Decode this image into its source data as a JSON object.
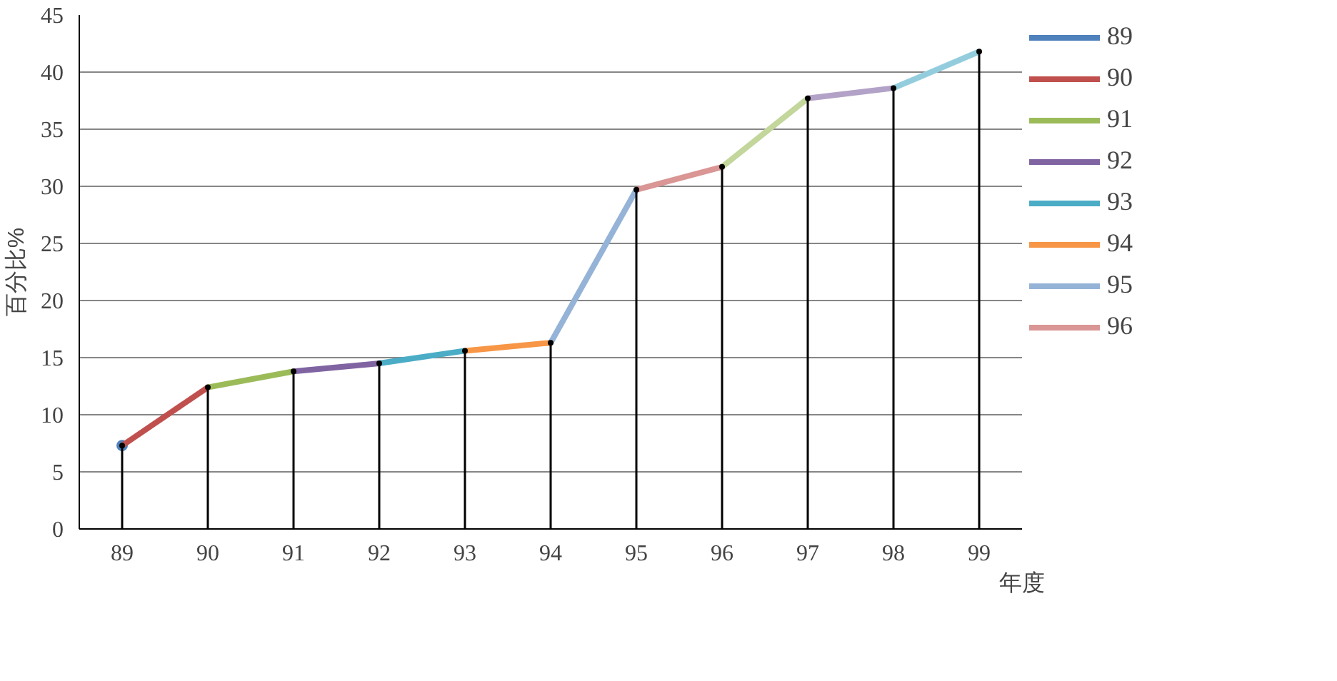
{
  "chart_data": {
    "type": "line",
    "categories": [
      "89",
      "90",
      "91",
      "92",
      "93",
      "94",
      "95",
      "96",
      "97",
      "98",
      "99"
    ],
    "ylabel": "百分比%",
    "xlabel": "年度",
    "ylim": [
      0,
      45
    ],
    "yticks": [
      0,
      5,
      10,
      15,
      20,
      25,
      30,
      35,
      40,
      45
    ],
    "grid": "y",
    "legend": "right",
    "line_style": "solid",
    "marker": "none",
    "series": [
      {
        "name": "89",
        "color": "#4f81bd",
        "marker": "circle",
        "values": [
          7.3,
          null,
          null,
          null,
          null,
          null,
          null,
          null,
          null,
          null,
          null
        ]
      },
      {
        "name": "90",
        "color": "#c0504d",
        "values": [
          7.3,
          12.4,
          null,
          null,
          null,
          null,
          null,
          null,
          null,
          null,
          null
        ]
      },
      {
        "name": "91",
        "color": "#9bbb59",
        "values": [
          null,
          12.4,
          13.8,
          null,
          null,
          null,
          null,
          null,
          null,
          null,
          null
        ]
      },
      {
        "name": "92",
        "color": "#8064a2",
        "values": [
          null,
          null,
          13.8,
          14.5,
          null,
          null,
          null,
          null,
          null,
          null,
          null
        ]
      },
      {
        "name": "93",
        "color": "#4bacc6",
        "values": [
          null,
          null,
          null,
          14.5,
          15.6,
          null,
          null,
          null,
          null,
          null,
          null
        ]
      },
      {
        "name": "94",
        "color": "#f79646",
        "values": [
          null,
          null,
          null,
          null,
          15.6,
          16.3,
          null,
          null,
          null,
          null,
          null
        ]
      },
      {
        "name": "95",
        "color": "#95b3d7",
        "values": [
          null,
          null,
          null,
          null,
          null,
          16.3,
          29.7,
          null,
          null,
          null,
          null
        ]
      },
      {
        "name": "96",
        "color": "#d99694",
        "values": [
          null,
          null,
          null,
          null,
          null,
          null,
          29.7,
          31.7,
          null,
          null,
          null
        ]
      },
      {
        "color": "#c3d69b",
        "values": [
          null,
          null,
          null,
          null,
          null,
          null,
          null,
          31.7,
          37.7,
          null,
          null
        ]
      },
      {
        "color": "#b3a2c7",
        "values": [
          null,
          null,
          null,
          null,
          null,
          null,
          null,
          null,
          37.7,
          38.6,
          null
        ]
      },
      {
        "color": "#93cddd",
        "values": [
          null,
          null,
          null,
          null,
          null,
          null,
          null,
          null,
          null,
          38.6,
          41.8
        ]
      },
      {
        "type": "lollipop",
        "color": "#000000",
        "values": [
          7.3,
          12.4,
          13.8,
          14.5,
          15.6,
          16.3,
          29.7,
          31.7,
          37.7,
          38.6,
          41.8
        ]
      }
    ]
  }
}
